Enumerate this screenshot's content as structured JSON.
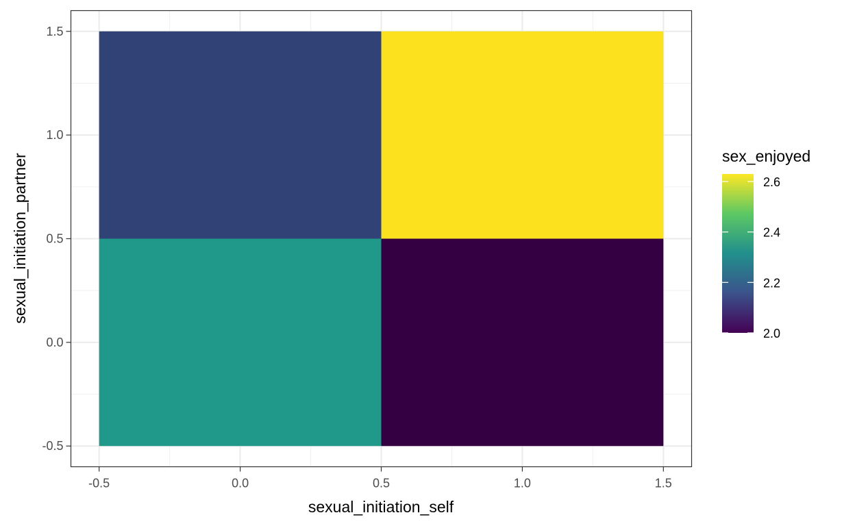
{
  "chart_data": {
    "type": "heatmap",
    "xlabel": "sexual_initiation_self",
    "ylabel": "sexual_initiation_partner",
    "x_ticks": [
      "-0.5",
      "0.0",
      "0.5",
      "1.0",
      "1.5"
    ],
    "y_ticks": [
      "-0.5",
      "0.0",
      "0.5",
      "1.0",
      "1.5"
    ],
    "xlim": [
      -0.6,
      1.6
    ],
    "ylim": [
      -0.6,
      1.6
    ],
    "grid": true,
    "cells": [
      {
        "x": 0,
        "y": 0,
        "value": 2.4,
        "color": "#21998A"
      },
      {
        "x": 1,
        "y": 0,
        "value": 2.0,
        "color": "#350042"
      },
      {
        "x": 0,
        "y": 1,
        "value": 2.13,
        "color": "#314276"
      },
      {
        "x": 1,
        "y": 1,
        "value": 2.63,
        "color": "#FCE21E"
      }
    ],
    "legend": {
      "title": "sex_enjoyed",
      "position": "right",
      "range": [
        2.0,
        2.63
      ],
      "ticks": [
        {
          "value": 2.0,
          "label": "2.0"
        },
        {
          "value": 2.2,
          "label": "2.2"
        },
        {
          "value": 2.4,
          "label": "2.4"
        },
        {
          "value": 2.6,
          "label": "2.6"
        }
      ],
      "colormap": [
        "#440154",
        "#3B528B",
        "#21908C",
        "#5DC863",
        "#FDE725"
      ]
    }
  }
}
